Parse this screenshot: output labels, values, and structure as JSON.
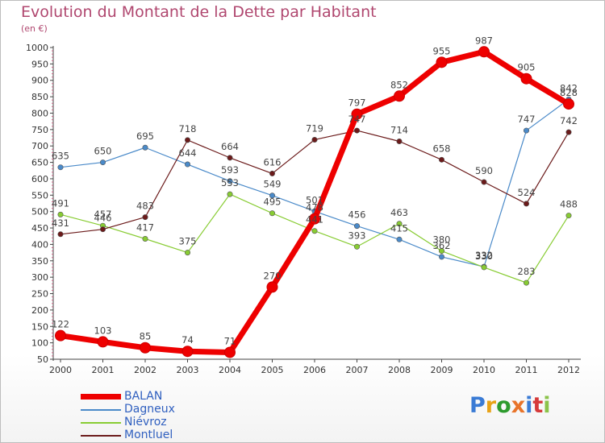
{
  "title": "Evolution du Montant de la Dette par Habitant",
  "unit": "(en €)",
  "logo": {
    "text": "Proxiti",
    "colors": [
      "#3a7bd5",
      "#e8a317",
      "#2d9b2d",
      "#e8742a",
      "#3a7bd5",
      "#d63a3a",
      "#8bc34a"
    ]
  },
  "chart_data": {
    "type": "line",
    "title": "Evolution du Montant de la Dette par Habitant",
    "ylabel": "(en €)",
    "x": [
      "2000",
      "2001",
      "2002",
      "2003",
      "2004",
      "2005",
      "2006",
      "2007",
      "2008",
      "2009",
      "2010",
      "2011",
      "2012"
    ],
    "ylim": [
      50,
      1000
    ],
    "yticks": [
      50,
      100,
      150,
      200,
      250,
      300,
      350,
      400,
      450,
      500,
      550,
      600,
      650,
      700,
      750,
      800,
      850,
      900,
      950,
      1000
    ],
    "grid": false,
    "legend_position": "bottom-left",
    "series": [
      {
        "name": "BALAN",
        "color": "#ee0000",
        "thick": true,
        "values": [
          122,
          103,
          85,
          74,
          71,
          270,
          478,
          797,
          852,
          955,
          987,
          905,
          828
        ]
      },
      {
        "name": "Dagneux",
        "color": "#4a8ac9",
        "thick": false,
        "values": [
          635,
          650,
          695,
          644,
          593,
          549,
          501,
          456,
          415,
          362,
          332,
          747,
          842
        ]
      },
      {
        "name": "Niévroz",
        "color": "#88cc33",
        "thick": false,
        "values": [
          491,
          457,
          417,
          375,
          553,
          495,
          441,
          393,
          463,
          380,
          330,
          283,
          488
        ]
      },
      {
        "name": "Montluel",
        "color": "#6b1a1a",
        "thick": false,
        "values": [
          431,
          446,
          483,
          718,
          664,
          616,
          719,
          747,
          714,
          658,
          590,
          524,
          742
        ]
      }
    ]
  }
}
